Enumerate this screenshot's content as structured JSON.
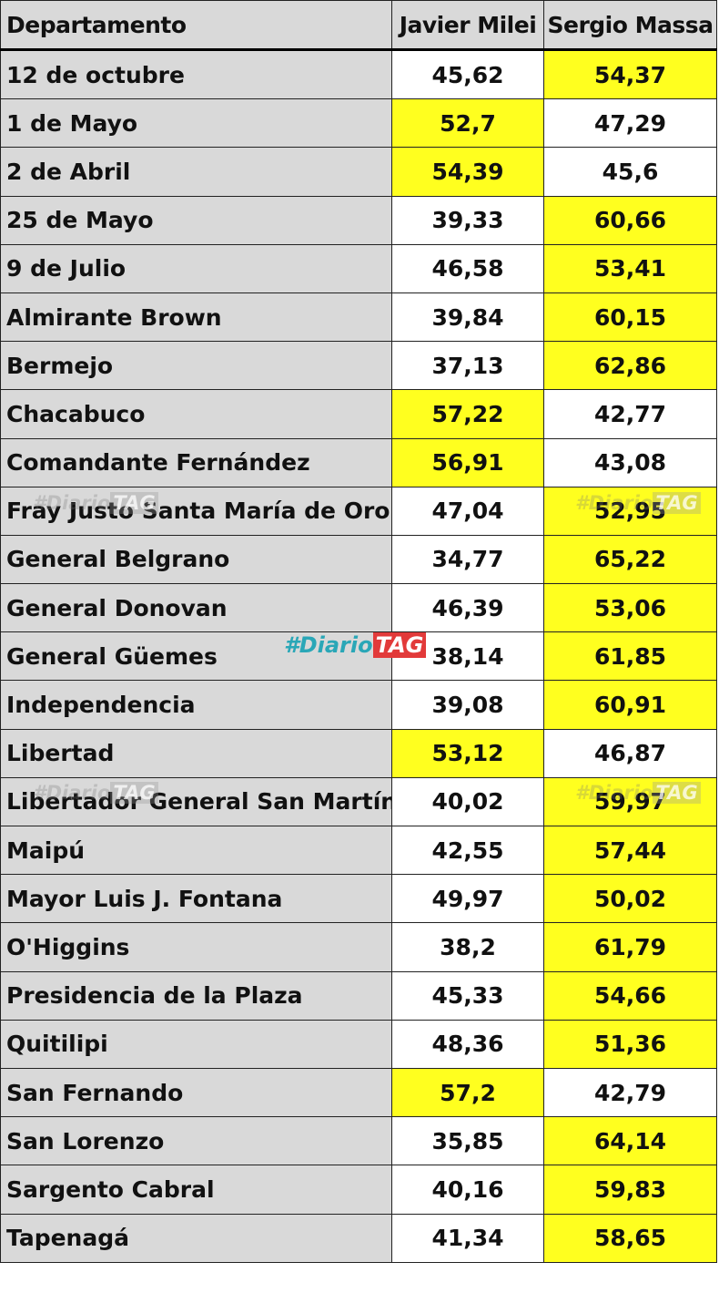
{
  "table": {
    "headers": [
      "Departamento",
      "Javier Milei",
      "Sergio Massa"
    ],
    "highlight_color": "#ffff1f",
    "rows": [
      {
        "dept": "12 de octubre",
        "milei": "45,62",
        "massa": "54,37",
        "winner": "massa"
      },
      {
        "dept": "1 de Mayo",
        "milei": "52,7",
        "massa": "47,29",
        "winner": "milei"
      },
      {
        "dept": "2 de Abril",
        "milei": "54,39",
        "massa": "45,6",
        "winner": "milei"
      },
      {
        "dept": "25 de Mayo",
        "milei": "39,33",
        "massa": "60,66",
        "winner": "massa"
      },
      {
        "dept": "9 de Julio",
        "milei": "46,58",
        "massa": "53,41",
        "winner": "massa"
      },
      {
        "dept": "Almirante Brown",
        "milei": "39,84",
        "massa": "60,15",
        "winner": "massa"
      },
      {
        "dept": "Bermejo",
        "milei": "37,13",
        "massa": "62,86",
        "winner": "massa"
      },
      {
        "dept": "Chacabuco",
        "milei": "57,22",
        "massa": "42,77",
        "winner": "milei"
      },
      {
        "dept": "Comandante Fernández",
        "milei": "56,91",
        "massa": "43,08",
        "winner": "milei"
      },
      {
        "dept": "Fray Justo Santa María de Oro",
        "milei": "47,04",
        "massa": "52,95",
        "winner": "massa"
      },
      {
        "dept": "General Belgrano",
        "milei": "34,77",
        "massa": "65,22",
        "winner": "massa"
      },
      {
        "dept": "General Donovan",
        "milei": "46,39",
        "massa": "53,06",
        "winner": "massa"
      },
      {
        "dept": "General Güemes",
        "milei": "38,14",
        "massa": "61,85",
        "winner": "massa"
      },
      {
        "dept": "Independencia",
        "milei": "39,08",
        "massa": "60,91",
        "winner": "massa"
      },
      {
        "dept": "Libertad",
        "milei": "53,12",
        "massa": "46,87",
        "winner": "milei"
      },
      {
        "dept": "Libertador General San Martín",
        "milei": "40,02",
        "massa": "59,97",
        "winner": "massa"
      },
      {
        "dept": "Maipú",
        "milei": "42,55",
        "massa": "57,44",
        "winner": "massa"
      },
      {
        "dept": "Mayor Luis J. Fontana",
        "milei": "49,97",
        "massa": "50,02",
        "winner": "massa"
      },
      {
        "dept": "O'Higgins",
        "milei": "38,2",
        "massa": "61,79",
        "winner": "massa"
      },
      {
        "dept": "Presidencia de la Plaza",
        "milei": "45,33",
        "massa": "54,66",
        "winner": "massa"
      },
      {
        "dept": "Quitilipi",
        "milei": "48,36",
        "massa": "51,36",
        "winner": "massa"
      },
      {
        "dept": "San Fernando",
        "milei": "57,2",
        "massa": "42,79",
        "winner": "milei"
      },
      {
        "dept": "San Lorenzo",
        "milei": "35,85",
        "massa": "64,14",
        "winner": "massa"
      },
      {
        "dept": "Sargento Cabral",
        "milei": "40,16",
        "massa": "59,83",
        "winner": "massa"
      },
      {
        "dept": "Tapenagá",
        "milei": "41,34",
        "massa": "58,65",
        "winner": "massa"
      }
    ]
  },
  "watermark": {
    "hash": "#Diario",
    "tag": "TAG"
  }
}
